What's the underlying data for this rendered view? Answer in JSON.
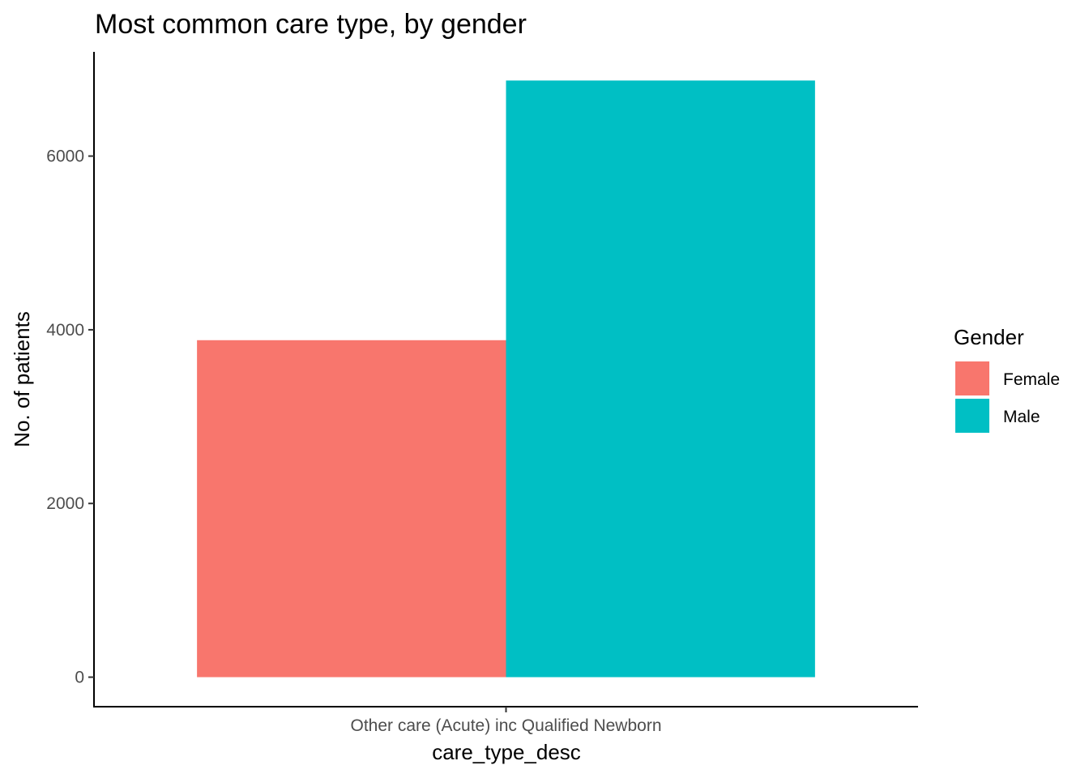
{
  "chart_data": {
    "type": "bar",
    "title": "Most common care type, by gender",
    "xlabel": "care_type_desc",
    "ylabel": "No. of patients",
    "categories": [
      "Other care (Acute) inc Qualified Newborn"
    ],
    "series": [
      {
        "name": "Female",
        "values": [
          3880
        ],
        "color": "#F8766D"
      },
      {
        "name": "Male",
        "values": [
          6870
        ],
        "color": "#00BFC4"
      }
    ],
    "ylim": [
      -340,
      7200
    ],
    "yticks": [
      0,
      2000,
      4000,
      6000
    ],
    "yticks_labels": [
      "0",
      "2000",
      "4000",
      "6000"
    ],
    "grid": false,
    "legend": {
      "title": "Gender",
      "position": "right",
      "entries": [
        "Female",
        "Male"
      ]
    }
  }
}
